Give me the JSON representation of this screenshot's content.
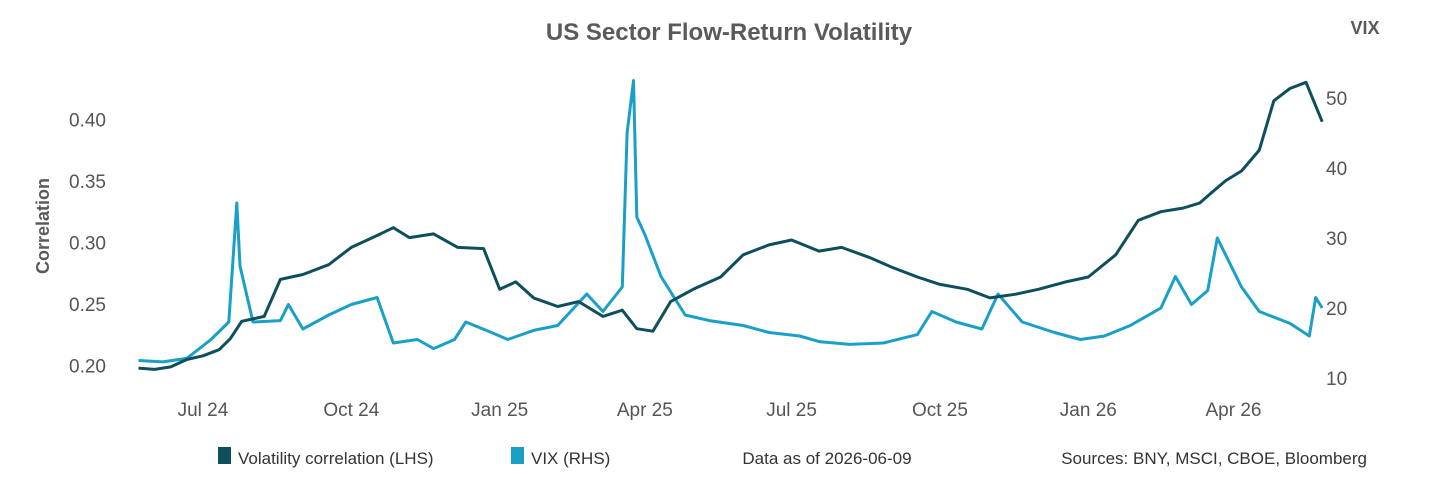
{
  "chart_data": {
    "type": "line",
    "title": "US Sector Flow-Return Volatility",
    "ylabel": "Correlation",
    "y2label": "VIX",
    "ylim": [
      0.19,
      0.44
    ],
    "y2lim": [
      10,
      54
    ],
    "yticks": [
      "0.20",
      "0.25",
      "0.30",
      "0.35",
      "0.40"
    ],
    "y2ticks": [
      "10",
      "20",
      "30",
      "40",
      "50"
    ],
    "xticks": [
      "Jul 24",
      "Oct 24",
      "Jan 25",
      "Apr 25",
      "Jul 25",
      "Oct 25",
      "Jan 26",
      "Apr 26"
    ],
    "grid": false,
    "legend_position": "bottom-left",
    "series": [
      {
        "name": "Volatility correlation (LHS)",
        "axis": "left",
        "color": "#0d4f5c",
        "x": [
          "2024-06-05",
          "2024-06-15",
          "2024-06-25",
          "2024-07-05",
          "2024-07-15",
          "2024-07-25",
          "2024-08-01",
          "2024-08-08",
          "2024-08-15",
          "2024-08-22",
          "2024-09-01",
          "2024-09-15",
          "2024-10-01",
          "2024-10-15",
          "2024-10-30",
          "2024-11-10",
          "2024-11-20",
          "2024-12-05",
          "2024-12-20",
          "2025-01-05",
          "2025-01-15",
          "2025-01-25",
          "2025-02-05",
          "2025-02-20",
          "2025-03-05",
          "2025-03-20",
          "2025-04-01",
          "2025-04-10",
          "2025-04-20",
          "2025-05-01",
          "2025-05-15",
          "2025-06-01",
          "2025-06-15",
          "2025-07-01",
          "2025-07-15",
          "2025-08-01",
          "2025-08-15",
          "2025-09-01",
          "2025-09-15",
          "2025-10-01",
          "2025-10-15",
          "2025-11-01",
          "2025-11-15",
          "2025-12-01",
          "2025-12-15",
          "2026-01-01",
          "2026-01-15",
          "2026-02-01",
          "2026-02-15",
          "2026-03-01",
          "2026-03-15",
          "2026-03-25",
          "2026-04-01",
          "2026-04-10",
          "2026-04-20",
          "2026-05-01",
          "2026-05-10",
          "2026-05-20",
          "2026-05-30",
          "2026-06-09"
        ],
        "values": [
          0.198,
          0.197,
          0.199,
          0.205,
          0.208,
          0.213,
          0.222,
          0.236,
          0.238,
          0.24,
          0.27,
          0.274,
          0.282,
          0.296,
          0.305,
          0.312,
          0.304,
          0.307,
          0.296,
          0.295,
          0.262,
          0.268,
          0.255,
          0.248,
          0.252,
          0.24,
          0.245,
          0.23,
          0.228,
          0.252,
          0.262,
          0.272,
          0.29,
          0.298,
          0.302,
          0.293,
          0.296,
          0.288,
          0.28,
          0.272,
          0.266,
          0.262,
          0.255,
          0.258,
          0.262,
          0.268,
          0.272,
          0.29,
          0.318,
          0.325,
          0.328,
          0.332,
          0.34,
          0.35,
          0.358,
          0.375,
          0.415,
          0.425,
          0.43,
          0.398
        ]
      },
      {
        "name": "VIX (RHS)",
        "axis": "right",
        "color": "#1aa0c6",
        "x": [
          "2024-06-05",
          "2024-06-20",
          "2024-07-05",
          "2024-07-20",
          "2024-07-31",
          "2024-08-05",
          "2024-08-07",
          "2024-08-15",
          "2024-09-01",
          "2024-09-06",
          "2024-09-15",
          "2024-10-01",
          "2024-10-15",
          "2024-10-31",
          "2024-11-10",
          "2024-11-25",
          "2024-12-05",
          "2024-12-18",
          "2024-12-25",
          "2025-01-10",
          "2025-01-20",
          "2025-02-05",
          "2025-02-20",
          "2025-03-10",
          "2025-03-20",
          "2025-04-01",
          "2025-04-04",
          "2025-04-08",
          "2025-04-10",
          "2025-04-15",
          "2025-04-25",
          "2025-05-10",
          "2025-05-25",
          "2025-06-15",
          "2025-07-01",
          "2025-07-20",
          "2025-08-01",
          "2025-08-20",
          "2025-09-10",
          "2025-10-01",
          "2025-10-10",
          "2025-10-25",
          "2025-11-10",
          "2025-11-20",
          "2025-12-05",
          "2025-12-25",
          "2026-01-10",
          "2026-01-25",
          "2026-02-10",
          "2026-03-01",
          "2026-03-10",
          "2026-03-20",
          "2026-03-30",
          "2026-04-05",
          "2026-04-20",
          "2026-05-01",
          "2026-05-20",
          "2026-06-01",
          "2026-06-05",
          "2026-06-09"
        ],
        "values": [
          12.5,
          12.3,
          12.8,
          15.5,
          18.0,
          35.0,
          26.0,
          18.0,
          18.2,
          20.5,
          17.0,
          19.0,
          20.5,
          21.5,
          15.0,
          15.5,
          14.2,
          15.5,
          18.0,
          16.5,
          15.5,
          16.8,
          17.5,
          22.0,
          19.5,
          23.0,
          45.0,
          52.5,
          33.0,
          30.5,
          24.5,
          19.0,
          18.2,
          17.5,
          16.5,
          16.0,
          15.2,
          14.8,
          15.0,
          16.2,
          19.5,
          18.0,
          17.0,
          22.0,
          18.0,
          16.5,
          15.5,
          16.0,
          17.5,
          20.0,
          24.5,
          20.5,
          22.5,
          30.0,
          23.0,
          19.5,
          17.8,
          16.0,
          21.5,
          20.0
        ]
      }
    ]
  },
  "footer": {
    "as_of": "Data as of 2026-06-09",
    "sources": "Sources:  BNY, MSCI, CBOE, Bloomberg"
  }
}
